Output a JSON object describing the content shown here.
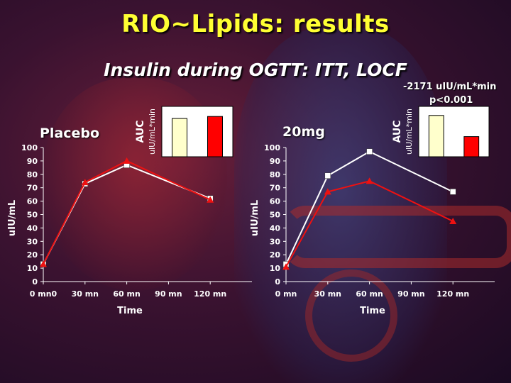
{
  "title": "RIO~Lipids: results",
  "subtitle": "Insulin during OGTT: ITT, LOCF",
  "colors": {
    "title": "#ffff33",
    "white_series": "#ffffff",
    "red_series": "#ee1111",
    "auc_bar_1": "#ffffcc",
    "auc_bar_2": "#ff0000"
  },
  "annotations": {
    "auc_difference": "-2171 uIU/mL*min",
    "p_value": "p<0.001"
  },
  "chart_data": [
    {
      "type": "line",
      "panel_label": "Placebo",
      "xlabel": "Time",
      "ylabel": "uIU/mL",
      "ylim": [
        0,
        100
      ],
      "y_ticks": [
        "0",
        "10",
        "20",
        "30",
        "40",
        "50",
        "60",
        "70",
        "80",
        "90",
        "100"
      ],
      "x": [
        0,
        30,
        60,
        90,
        120
      ],
      "x_tick_labels": [
        "0 mn0",
        "30 mn",
        "60 mn",
        "90 mn",
        "120 mn"
      ],
      "series": [
        {
          "color": "#ffffff",
          "marker": "square",
          "x": [
            0,
            30,
            60,
            120
          ],
          "values": [
            13,
            73,
            87,
            62
          ]
        },
        {
          "color": "#ee1111",
          "marker": "triangle",
          "x": [
            0,
            30,
            60,
            120
          ],
          "values": [
            13,
            74,
            90,
            61
          ]
        }
      ],
      "grid": false
    },
    {
      "type": "line",
      "panel_label": "20mg",
      "xlabel": "Time",
      "ylabel": "uIU/mL",
      "ylim": [
        0,
        100
      ],
      "y_ticks": [
        "0",
        "10",
        "20",
        "30",
        "40",
        "50",
        "60",
        "70",
        "80",
        "90",
        "100"
      ],
      "x": [
        0,
        30,
        60,
        90,
        120
      ],
      "x_tick_labels": [
        "0 mn",
        "30 mn",
        "60 mn",
        "90 mn",
        "120 mn"
      ],
      "series": [
        {
          "color": "#ffffff",
          "marker": "square",
          "x": [
            0,
            30,
            60,
            120
          ],
          "values": [
            13,
            79,
            97,
            67
          ]
        },
        {
          "color": "#ee1111",
          "marker": "triangle",
          "x": [
            0,
            30,
            60,
            120
          ],
          "values": [
            11,
            67,
            75,
            45
          ]
        }
      ],
      "grid": false
    },
    {
      "type": "bar",
      "title": "AUC",
      "ylabel": "uIU/mL*min",
      "categories": [
        "",
        ""
      ],
      "values": [
        76,
        80
      ],
      "colors": [
        "#ffffcc",
        "#ff0000"
      ],
      "ylim": [
        0,
        100
      ]
    },
    {
      "type": "bar",
      "title": "AUC",
      "ylabel": "uIU/mL*min",
      "categories": [
        "",
        ""
      ],
      "values": [
        82,
        40
      ],
      "colors": [
        "#ffffcc",
        "#ff0000"
      ],
      "ylim": [
        0,
        100
      ]
    }
  ]
}
